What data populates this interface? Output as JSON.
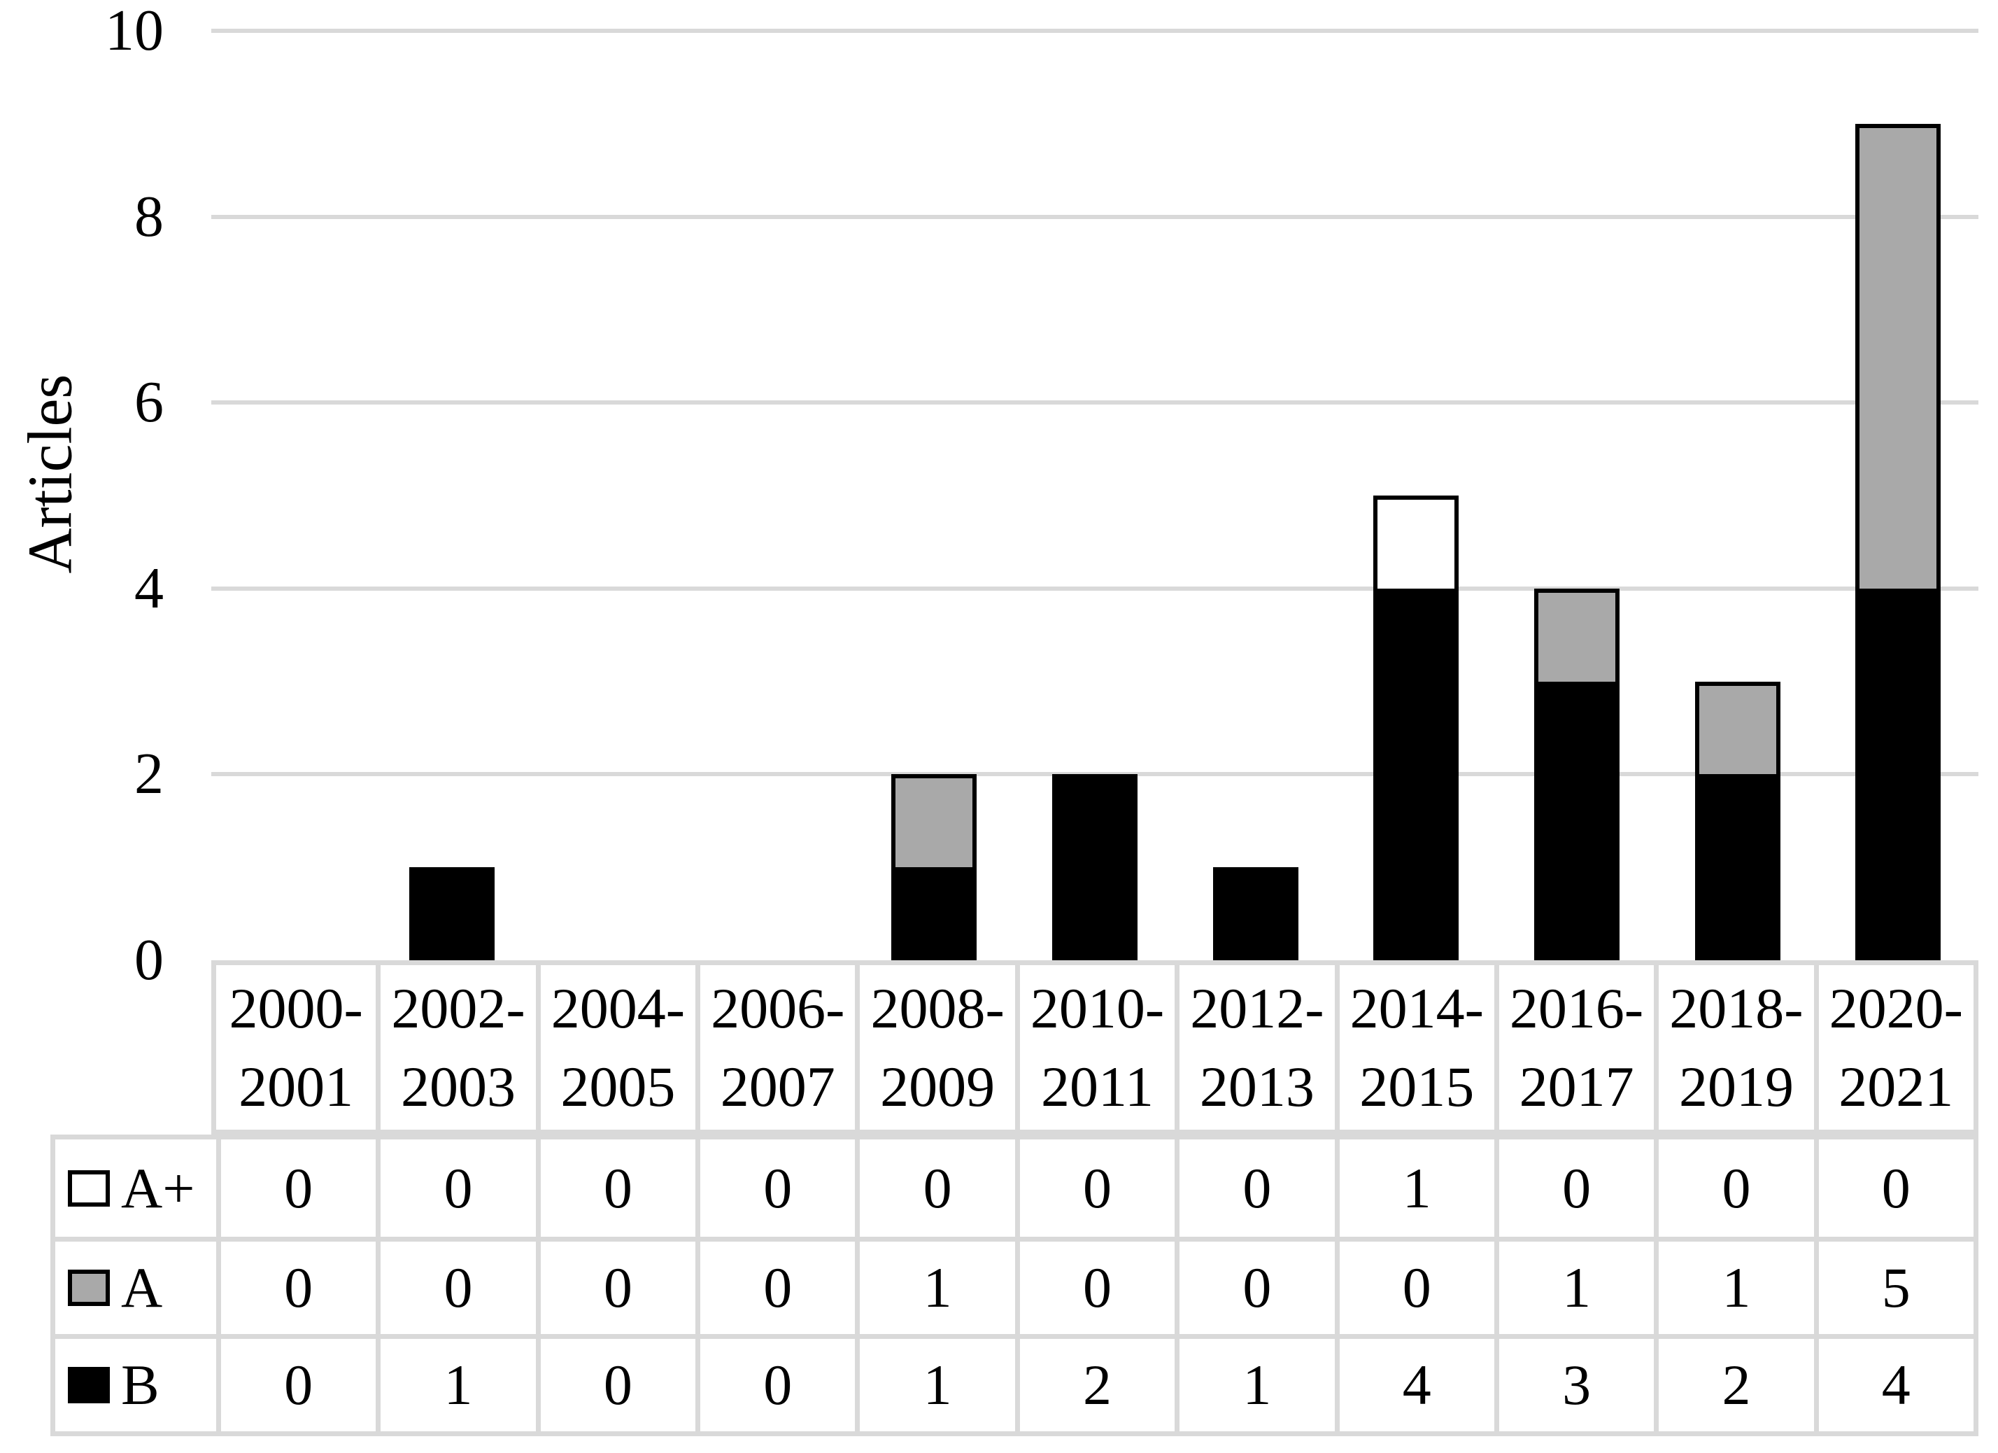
{
  "figure": {
    "background": "#ffffff",
    "title": ""
  },
  "chart_data": {
    "type": "bar",
    "stacked": true,
    "orientation": "vertical",
    "title": "",
    "xlabel": "",
    "ylabel": "Articles",
    "ylim": [
      0,
      10
    ],
    "y_ticks": [
      0,
      2,
      4,
      6,
      8,
      10
    ],
    "grid": "horizontal",
    "grid_color": "#d9d9d9",
    "categories": [
      "2000-2001",
      "2002-2003",
      "2004-2005",
      "2006-2007",
      "2008-2009",
      "2010-2011",
      "2012-2013",
      "2014-2015",
      "2016-2017",
      "2018-2019",
      "2020-2021"
    ],
    "category_labels": [
      [
        "2000-",
        "2001"
      ],
      [
        "2002-",
        "2003"
      ],
      [
        "2004-",
        "2005"
      ],
      [
        "2006-",
        "2007"
      ],
      [
        "2008-",
        "2009"
      ],
      [
        "2010-",
        "2011"
      ],
      [
        "2012-",
        "2013"
      ],
      [
        "2014-",
        "2015"
      ],
      [
        "2016-",
        "2017"
      ],
      [
        "2018-",
        "2019"
      ],
      [
        "2020-",
        "2021"
      ]
    ],
    "series": [
      {
        "name": "A+",
        "color": "#ffffff",
        "border_color": "#000000",
        "values": [
          0,
          0,
          0,
          0,
          0,
          0,
          0,
          1,
          0,
          0,
          0
        ]
      },
      {
        "name": "A",
        "color": "#a9a9a9",
        "border_color": "#000000",
        "values": [
          0,
          0,
          0,
          0,
          1,
          0,
          0,
          0,
          1,
          1,
          5
        ]
      },
      {
        "name": "B",
        "color": "#000000",
        "border_color": "#000000",
        "values": [
          0,
          1,
          0,
          0,
          1,
          2,
          1,
          4,
          3,
          2,
          4
        ]
      }
    ],
    "stack_order_bottom_to_top": [
      "B",
      "A",
      "A+"
    ],
    "legend_position": "data-table-left"
  }
}
